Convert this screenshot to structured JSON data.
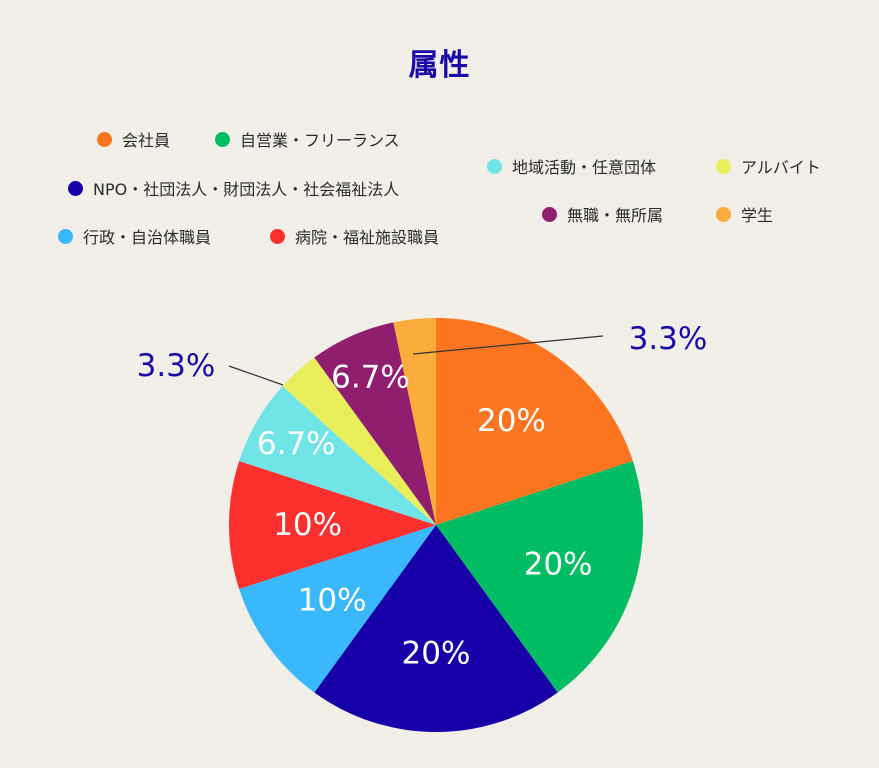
{
  "chart_data": {
    "type": "pie",
    "title": "属性",
    "categories": [
      "会社員",
      "自営業・フリーランス",
      "NPO・社団法人・財団法人・社会福祉法人",
      "行政・自治体職員",
      "病院・福祉施設職員",
      "地域活動・任意団体",
      "アルバイト",
      "無職・無所属",
      "学生"
    ],
    "values": [
      20,
      20,
      20,
      10,
      10,
      6.7,
      3.3,
      6.7,
      3.3
    ],
    "data_labels": [
      "20%",
      "20%",
      "20%",
      "10%",
      "10%",
      "6.7%",
      "3.3%",
      "6.7%",
      "3.3%"
    ],
    "colors": [
      "#fd7520",
      "#00bd63",
      "#1800a8",
      "#39b8fd",
      "#fd3030",
      "#71e4e8",
      "#e9ef5a",
      "#8f1f6e",
      "#fbad3b"
    ],
    "legend_placement": "top",
    "label_color_inside": "#ffffff",
    "label_color_outside": "#1a0aa8"
  }
}
